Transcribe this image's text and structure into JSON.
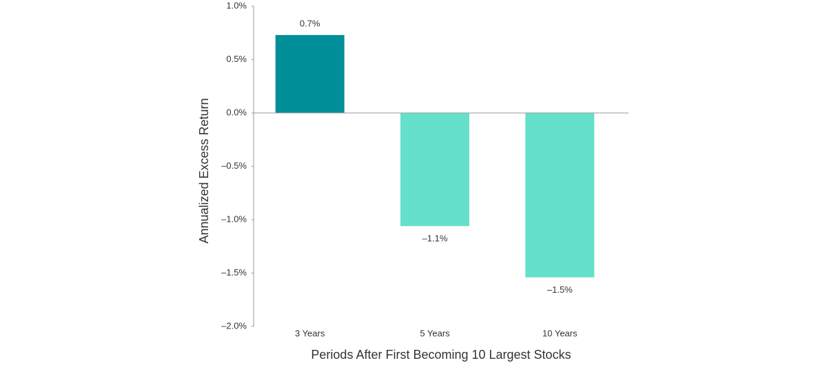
{
  "chart_data": {
    "type": "bar",
    "x_label": "Periods After First Becoming 10 Largest Stocks",
    "y_label": "Annualized Excess Return",
    "categories": [
      "3 Years",
      "5 Years",
      "10 Years"
    ],
    "values": [
      0.73,
      -1.06,
      -1.54
    ],
    "value_labels": [
      "0.7%",
      "–1.1%",
      "–1.5%"
    ],
    "colors": [
      "#008f99",
      "#64e0cb",
      "#64e0cb"
    ],
    "ylim": [
      -2,
      1
    ],
    "yticks": [
      {
        "value": 1,
        "label": "1.0%"
      },
      {
        "value": 0.5,
        "label": "0.5%"
      },
      {
        "value": 0,
        "label": "0.0%"
      },
      {
        "value": -0.5,
        "label": "–0.5%"
      },
      {
        "value": -1,
        "label": "–1.0%"
      },
      {
        "value": -1.5,
        "label": "–1.5%"
      },
      {
        "value": -2,
        "label": "–2.0%"
      }
    ],
    "grid": false
  }
}
